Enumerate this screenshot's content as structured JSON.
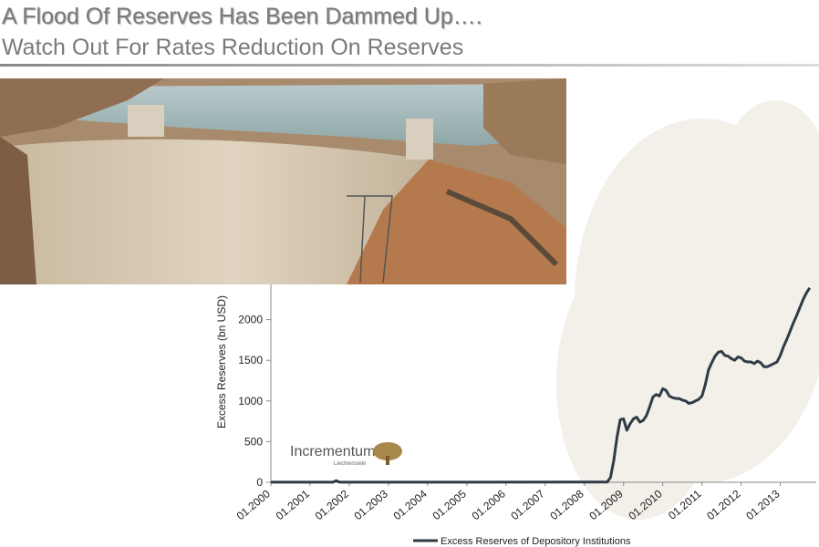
{
  "slide": {
    "title": [
      "A Flood Of Reserves Has Been Dammed Up….",
      "Watch Out For Rates Reduction On Reserves"
    ]
  },
  "logo": {
    "name": "Incrementum",
    "sub": "Liechtenstein"
  },
  "chart_data": {
    "type": "line",
    "y_label": "Excess Reserves (bn USD)",
    "xlim": [
      "01.2000",
      "12.2013"
    ],
    "xticks": [
      "01.2000",
      "01.2001",
      "01.2002",
      "01.2003",
      "01.2004",
      "01.2005",
      "01.2006",
      "01.2007",
      "01.2008",
      "01.2009",
      "01.2010",
      "01.2011",
      "01.2012",
      "01.2013"
    ],
    "ylim": [
      0,
      2500
    ],
    "yticks": [
      0,
      500,
      1000,
      1500,
      2000
    ],
    "legend": "bottom",
    "series": [
      {
        "name": "Excess Reserves of Depository Institutions",
        "color": "#2f3b47",
        "x": [
          "01.2000",
          "08.2001",
          "09.2001",
          "10.2001",
          "08.2008",
          "09.2008",
          "10.2008",
          "11.2008",
          "12.2008",
          "01.2009",
          "02.2009",
          "03.2009",
          "04.2009",
          "05.2009",
          "06.2009",
          "07.2009",
          "08.2009",
          "09.2009",
          "10.2009",
          "11.2009",
          "12.2009",
          "01.2010",
          "02.2010",
          "03.2010",
          "04.2010",
          "05.2010",
          "06.2010",
          "07.2010",
          "08.2010",
          "09.2010",
          "10.2010",
          "11.2010",
          "12.2010",
          "01.2011",
          "02.2011",
          "03.2011",
          "04.2011",
          "05.2011",
          "06.2011",
          "07.2011",
          "08.2011",
          "09.2011",
          "10.2011",
          "11.2011",
          "12.2011",
          "01.2012",
          "02.2012",
          "03.2012",
          "04.2012",
          "05.2012",
          "06.2012",
          "07.2012",
          "08.2012",
          "09.2012",
          "10.2012",
          "11.2012",
          "12.2012",
          "01.2013",
          "02.2013",
          "03.2013",
          "04.2013",
          "05.2013",
          "06.2013",
          "07.2013",
          "08.2013",
          "09.2013",
          "10.2013"
        ],
        "values": [
          1,
          1,
          19,
          1,
          2,
          60,
          270,
          560,
          770,
          780,
          640,
          720,
          780,
          800,
          740,
          760,
          820,
          930,
          1050,
          1080,
          1060,
          1150,
          1130,
          1060,
          1040,
          1030,
          1030,
          1010,
          1000,
          970,
          980,
          1000,
          1020,
          1060,
          1200,
          1380,
          1470,
          1550,
          1600,
          1610,
          1560,
          1550,
          1520,
          1500,
          1540,
          1530,
          1490,
          1480,
          1480,
          1460,
          1490,
          1470,
          1420,
          1420,
          1440,
          1460,
          1480,
          1560,
          1670,
          1760,
          1860,
          1960,
          2050,
          2150,
          2250,
          2330,
          2390
        ]
      }
    ]
  }
}
